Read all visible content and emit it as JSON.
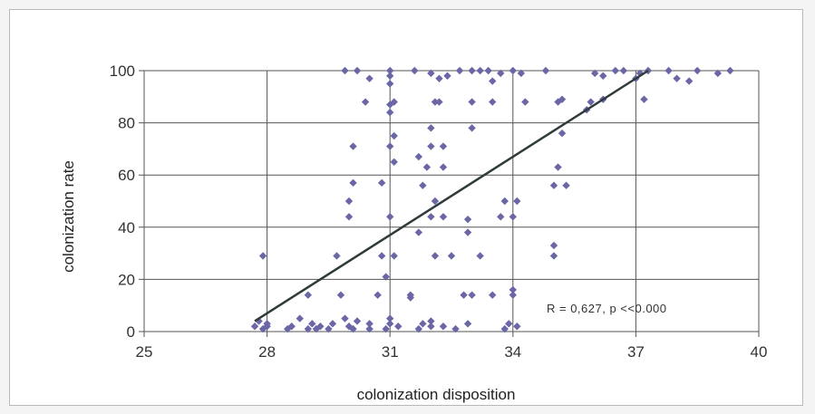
{
  "chart_data": {
    "type": "scatter",
    "title": "",
    "xlabel": "colonization disposition",
    "ylabel": "colonization rate",
    "xlim": [
      25,
      40
    ],
    "ylim": [
      0,
      100
    ],
    "x_ticks": [
      "25",
      "28",
      "31",
      "34",
      "37",
      "40"
    ],
    "y_ticks": [
      "0",
      "20",
      "40",
      "60",
      "80",
      "100"
    ],
    "grid": true,
    "annotation": "R = 0,627, p <<0.000",
    "marker_color": "#6b66a6",
    "trendline": {
      "color": "#2f3a3a",
      "x": [
        27.7,
        37.3
      ],
      "y": [
        4,
        100
      ]
    },
    "series": [
      {
        "points": [
          [
            27.7,
            2
          ],
          [
            27.8,
            4
          ],
          [
            27.9,
            1
          ],
          [
            28.0,
            3
          ],
          [
            27.9,
            29
          ],
          [
            28.5,
            1
          ],
          [
            28.6,
            2
          ],
          [
            28.8,
            5
          ],
          [
            29.0,
            1
          ],
          [
            29.1,
            3
          ],
          [
            29.3,
            2
          ],
          [
            29.0,
            14
          ],
          [
            29.5,
            1
          ],
          [
            29.6,
            3
          ],
          [
            29.7,
            29
          ],
          [
            29.8,
            14
          ],
          [
            29.9,
            5
          ],
          [
            30.0,
            2
          ],
          [
            30.1,
            1
          ],
          [
            30.2,
            4
          ],
          [
            30.0,
            44
          ],
          [
            30.0,
            50
          ],
          [
            30.1,
            57
          ],
          [
            30.1,
            71
          ],
          [
            30.2,
            100
          ],
          [
            29.9,
            100
          ],
          [
            30.4,
            88
          ],
          [
            30.5,
            97
          ],
          [
            30.5,
            3
          ],
          [
            30.7,
            14
          ],
          [
            30.8,
            29
          ],
          [
            30.9,
            1
          ],
          [
            30.8,
            57
          ],
          [
            30.9,
            21
          ],
          [
            31.0,
            3
          ],
          [
            31.0,
            5
          ],
          [
            31.1,
            29
          ],
          [
            31.0,
            44
          ],
          [
            31.1,
            65
          ],
          [
            31.0,
            71
          ],
          [
            31.1,
            75
          ],
          [
            31.0,
            84
          ],
          [
            31.0,
            87
          ],
          [
            31.1,
            88
          ],
          [
            31.0,
            95
          ],
          [
            31.0,
            98
          ],
          [
            31.0,
            100
          ],
          [
            31.2,
            2
          ],
          [
            31.5,
            14
          ],
          [
            31.6,
            100
          ],
          [
            31.7,
            1
          ],
          [
            31.8,
            3
          ],
          [
            31.7,
            38
          ],
          [
            31.8,
            56
          ],
          [
            31.7,
            67
          ],
          [
            31.9,
            63
          ],
          [
            32.0,
            2
          ],
          [
            32.0,
            4
          ],
          [
            32.1,
            29
          ],
          [
            32.0,
            44
          ],
          [
            32.1,
            50
          ],
          [
            32.0,
            71
          ],
          [
            32.0,
            78
          ],
          [
            32.1,
            88
          ],
          [
            32.0,
            99
          ],
          [
            32.2,
            97
          ],
          [
            32.3,
            44
          ],
          [
            32.3,
            71
          ],
          [
            32.2,
            88
          ],
          [
            32.4,
            98
          ],
          [
            32.5,
            29
          ],
          [
            32.8,
            14
          ],
          [
            32.9,
            3
          ],
          [
            33.0,
            14
          ],
          [
            32.9,
            43
          ],
          [
            32.9,
            38
          ],
          [
            33.0,
            78
          ],
          [
            33.0,
            88
          ],
          [
            33.0,
            100
          ],
          [
            33.2,
            29
          ],
          [
            33.2,
            100
          ],
          [
            33.5,
            14
          ],
          [
            33.5,
            88
          ],
          [
            33.5,
            96
          ],
          [
            33.7,
            99
          ],
          [
            33.8,
            1
          ],
          [
            33.9,
            3
          ],
          [
            34.0,
            14
          ],
          [
            34.1,
            2
          ],
          [
            34.0,
            16
          ],
          [
            34.0,
            44
          ],
          [
            34.1,
            50
          ],
          [
            33.8,
            50
          ],
          [
            33.7,
            44
          ],
          [
            34.0,
            100
          ],
          [
            34.2,
            99
          ],
          [
            34.3,
            88
          ],
          [
            35.0,
            29
          ],
          [
            35.0,
            33
          ],
          [
            35.0,
            56
          ],
          [
            35.1,
            63
          ],
          [
            35.2,
            76
          ],
          [
            35.1,
            88
          ],
          [
            35.2,
            89
          ],
          [
            35.3,
            56
          ],
          [
            35.8,
            85
          ],
          [
            35.9,
            88
          ],
          [
            36.0,
            99
          ],
          [
            36.2,
            98
          ],
          [
            36.2,
            89
          ],
          [
            36.5,
            100
          ],
          [
            37.0,
            97
          ],
          [
            37.2,
            89
          ],
          [
            37.1,
            99
          ],
          [
            37.3,
            100
          ],
          [
            37.8,
            100
          ],
          [
            38.0,
            97
          ],
          [
            38.3,
            96
          ],
          [
            38.5,
            100
          ],
          [
            39.0,
            99
          ],
          [
            39.3,
            100
          ],
          [
            36.7,
            100
          ],
          [
            34.8,
            100
          ],
          [
            33.4,
            100
          ],
          [
            32.7,
            100
          ],
          [
            31.5,
            13
          ],
          [
            32.3,
            2
          ],
          [
            32.6,
            1
          ],
          [
            28.0,
            2
          ],
          [
            29.2,
            1
          ],
          [
            30.5,
            1
          ],
          [
            32.3,
            63
          ]
        ]
      }
    ]
  }
}
